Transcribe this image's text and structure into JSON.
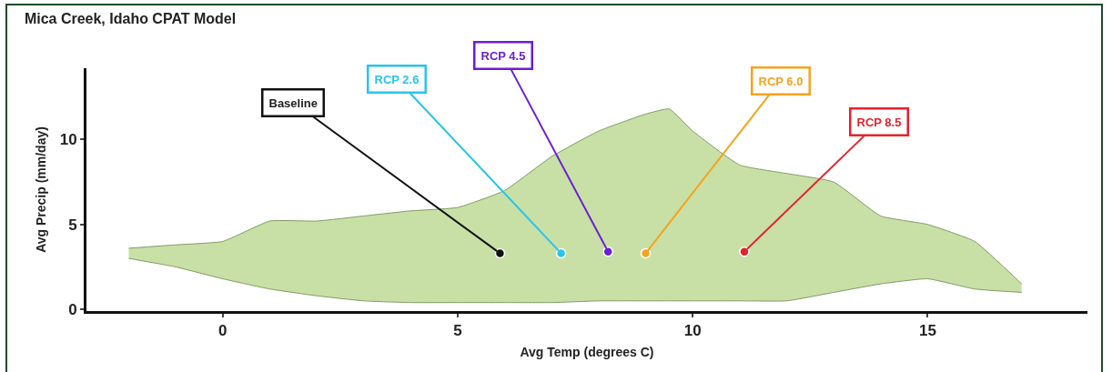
{
  "chart_data": {
    "type": "scatter",
    "title": "Mica Creek, Idaho CPAT Model",
    "xlabel": "Avg Temp (degrees C)",
    "ylabel": "Avg Precip (mm/day)",
    "xlim": [
      -2.9,
      18.4
    ],
    "ylim": [
      -0.1,
      14.2
    ],
    "xticks": [
      0,
      5,
      10,
      15
    ],
    "yticks": [
      0,
      5,
      10
    ],
    "grid": false,
    "marker": "circle",
    "series": [
      {
        "type": "line",
        "marker": "none",
        "color": "#7f9b63",
        "x": [
          -2,
          -1,
          0,
          1,
          2,
          3,
          4,
          5,
          6,
          7,
          8,
          9,
          9.5,
          10,
          11,
          12,
          13,
          14,
          15,
          16,
          17
        ],
        "values": [
          3.0,
          2.5,
          1.8,
          1.2,
          0.8,
          0.5,
          0.4,
          0.4,
          0.4,
          0.4,
          0.5,
          0.5,
          0.5,
          0.5,
          0.5,
          0.5,
          1.0,
          1.5,
          1.8,
          1.2,
          1.0
        ]
      },
      {
        "type": "area",
        "marker": "none",
        "color": "#c8e0a6",
        "x": [
          -2,
          -1,
          0,
          1,
          2,
          3,
          4,
          5,
          6,
          7,
          8,
          9,
          9.5,
          10,
          11,
          12,
          13,
          14,
          15,
          16,
          17
        ],
        "values": [
          3.6,
          3.8,
          4.0,
          5.2,
          5.2,
          5.5,
          5.8,
          6.0,
          7.0,
          9.0,
          10.5,
          11.5,
          11.8,
          10.5,
          8.5,
          8.0,
          7.5,
          5.5,
          5.0,
          4.0,
          1.5
        ]
      },
      {
        "x": [
          5.9,
          7.2,
          8.2,
          9.0,
          11.1
        ],
        "values": [
          3.3,
          3.3,
          3.4,
          3.3,
          3.4
        ],
        "colors": [
          "#111111",
          "#29c4ea",
          "#6a1fd0",
          "#f5a31e",
          "#e8202a"
        ]
      }
    ],
    "annotations": [
      {
        "text": "Baseline",
        "x": 5.9,
        "y": 3.3
      },
      {
        "text": "RCP 2.6",
        "x": 7.2,
        "y": 3.3
      },
      {
        "text": "RCP 4.5",
        "x": 8.2,
        "y": 3.4
      },
      {
        "text": "RCP 6.0",
        "x": 9.0,
        "y": 3.3
      },
      {
        "text": "RCP 8.5",
        "x": 11.1,
        "y": 3.4
      }
    ]
  }
}
